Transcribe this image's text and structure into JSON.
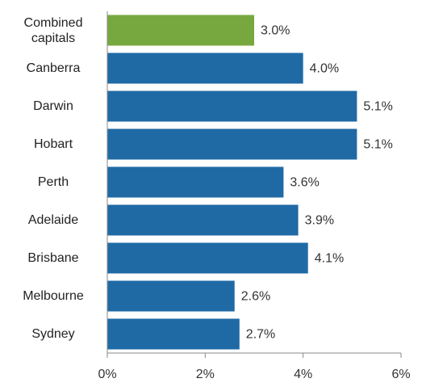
{
  "chart_data": {
    "type": "hbar",
    "categories": [
      "Combined capitals",
      "Canberra",
      "Darwin",
      "Hobart",
      "Perth",
      "Adelaide",
      "Brisbane",
      "Melbourne",
      "Sydney"
    ],
    "values": [
      3.0,
      4.0,
      5.1,
      5.1,
      3.6,
      3.9,
      4.1,
      2.6,
      2.7
    ],
    "value_labels": [
      "3.0%",
      "4.0%",
      "5.1%",
      "5.1%",
      "3.6%",
      "3.9%",
      "4.1%",
      "2.6%",
      "2.7%"
    ],
    "colors": [
      "#77a83f",
      "#1f6aa5",
      "#1f6aa5",
      "#1f6aa5",
      "#1f6aa5",
      "#1f6aa5",
      "#1f6aa5",
      "#1f6aa5",
      "#1f6aa5"
    ],
    "xlim": [
      0,
      6
    ],
    "xticks": [
      {
        "value": 0,
        "label": "0%"
      },
      {
        "value": 2,
        "label": "2%"
      },
      {
        "value": 4,
        "label": "4%"
      },
      {
        "value": 6,
        "label": "6%"
      }
    ]
  }
}
